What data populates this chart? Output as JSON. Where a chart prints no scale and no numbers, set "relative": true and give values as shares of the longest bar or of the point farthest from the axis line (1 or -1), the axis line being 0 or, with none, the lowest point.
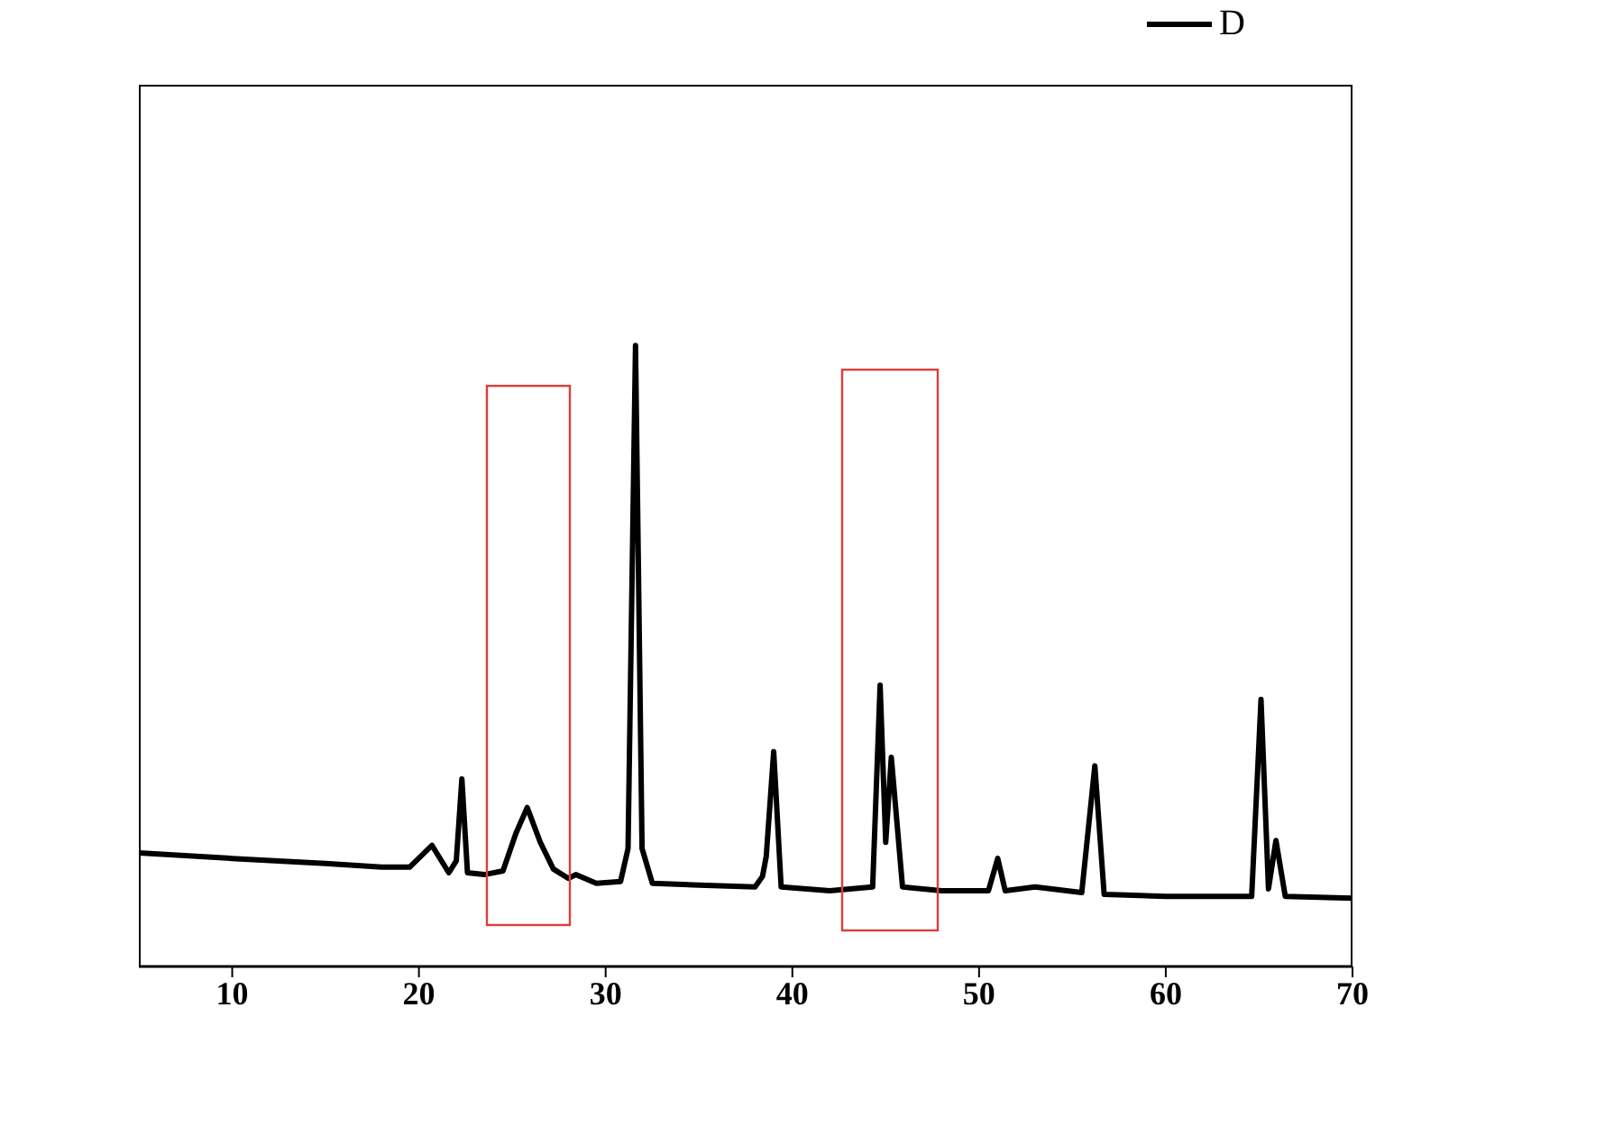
{
  "chart_data": {
    "type": "line",
    "relative": true,
    "xlim": [
      5,
      70
    ],
    "xticks": [
      10,
      20,
      30,
      40,
      50,
      60,
      70
    ],
    "tick_labels": "x",
    "legend": "top right",
    "marker": "none",
    "line_style": "solid",
    "series": [
      {
        "name": "D",
        "color": "#000000",
        "x": [
          5,
          10,
          15,
          18,
          19.5,
          20.7,
          21.6,
          22.0,
          22.3,
          22.6,
          23.5,
          24.5,
          25.2,
          25.8,
          26.5,
          27.2,
          28,
          28.4,
          29.5,
          30.8,
          31.2,
          31.6,
          31.95,
          32.5,
          35,
          38,
          38.4,
          38.6,
          39.0,
          39.4,
          42,
          44.3,
          44.7,
          45.0,
          45.3,
          45.9,
          48,
          50.5,
          51.0,
          51.4,
          53,
          55.5,
          56.2,
          56.7,
          60,
          64.6,
          65.1,
          65.5,
          65.9,
          66.4,
          70
        ],
        "values": [
          0.183,
          0.174,
          0.166,
          0.16,
          0.16,
          0.195,
          0.151,
          0.17,
          0.302,
          0.151,
          0.148,
          0.154,
          0.215,
          0.256,
          0.2,
          0.157,
          0.142,
          0.148,
          0.134,
          0.137,
          0.19,
          1,
          0.19,
          0.134,
          0.131,
          0.128,
          0.145,
          0.177,
          0.346,
          0.128,
          0.122,
          0.128,
          0.453,
          0.2,
          0.337,
          0.128,
          0.122,
          0.122,
          0.174,
          0.122,
          0.128,
          0.119,
          0.323,
          0.116,
          0.113,
          0.113,
          0.43,
          0.125,
          0.203,
          0.113,
          0.11
        ]
      }
    ]
  }
}
